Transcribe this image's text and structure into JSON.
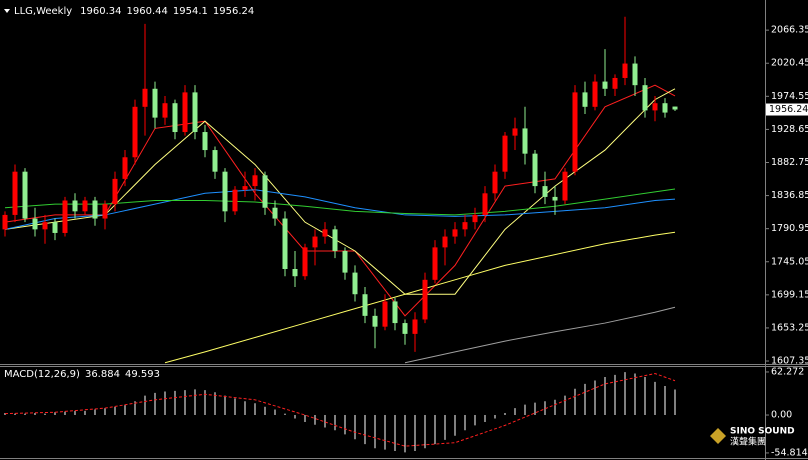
{
  "chart_data": [
    {
      "type": "candlestick",
      "title": "LLG,Weekly",
      "up_color": "#ff0000",
      "down_color": "#90ee90",
      "ylim": [
        1604.6,
        2104
      ],
      "yticks": [
        2066.35,
        2020.45,
        1974.55,
        1928.65,
        1882.75,
        1836.85,
        1790.95,
        1745.05,
        1699.15,
        1653.25,
        1607.35
      ],
      "last_price": 1956.24,
      "candles": [
        [
          1790,
          1815,
          1780,
          1810
        ],
        [
          1810,
          1880,
          1800,
          1870
        ],
        [
          1870,
          1875,
          1800,
          1805
        ],
        [
          1805,
          1820,
          1780,
          1790
        ],
        [
          1790,
          1810,
          1770,
          1800
        ],
        [
          1800,
          1805,
          1775,
          1785
        ],
        [
          1785,
          1835,
          1780,
          1830
        ],
        [
          1830,
          1840,
          1805,
          1815
        ],
        [
          1815,
          1835,
          1810,
          1830
        ],
        [
          1830,
          1835,
          1795,
          1805
        ],
        [
          1805,
          1830,
          1790,
          1825
        ],
        [
          1825,
          1870,
          1815,
          1860
        ],
        [
          1860,
          1900,
          1850,
          1890
        ],
        [
          1890,
          1970,
          1880,
          1960
        ],
        [
          1960,
          2075,
          1920,
          1985
        ],
        [
          1985,
          1995,
          1930,
          1945
        ],
        [
          1945,
          1975,
          1935,
          1965
        ],
        [
          1965,
          1970,
          1915,
          1925
        ],
        [
          1925,
          1990,
          1920,
          1980
        ],
        [
          1980,
          1990,
          1915,
          1925
        ],
        [
          1925,
          1935,
          1890,
          1900
        ],
        [
          1900,
          1905,
          1860,
          1870
        ],
        [
          1870,
          1875,
          1800,
          1815
        ],
        [
          1815,
          1850,
          1810,
          1845
        ],
        [
          1845,
          1870,
          1835,
          1850
        ],
        [
          1850,
          1875,
          1830,
          1865
        ],
        [
          1865,
          1870,
          1810,
          1820
        ],
        [
          1820,
          1830,
          1795,
          1805
        ],
        [
          1805,
          1815,
          1725,
          1735
        ],
        [
          1735,
          1760,
          1710,
          1725
        ],
        [
          1725,
          1770,
          1720,
          1765
        ],
        [
          1765,
          1790,
          1740,
          1780
        ],
        [
          1780,
          1800,
          1770,
          1790
        ],
        [
          1790,
          1795,
          1750,
          1760
        ],
        [
          1760,
          1765,
          1720,
          1730
        ],
        [
          1730,
          1740,
          1690,
          1700
        ],
        [
          1700,
          1710,
          1660,
          1670
        ],
        [
          1670,
          1680,
          1625,
          1655
        ],
        [
          1655,
          1700,
          1650,
          1690
        ],
        [
          1690,
          1695,
          1650,
          1660
        ],
        [
          1660,
          1665,
          1630,
          1645
        ],
        [
          1645,
          1675,
          1620,
          1665
        ],
        [
          1665,
          1730,
          1660,
          1720
        ],
        [
          1720,
          1775,
          1715,
          1765
        ],
        [
          1765,
          1790,
          1740,
          1780
        ],
        [
          1780,
          1800,
          1770,
          1790
        ],
        [
          1790,
          1810,
          1780,
          1800
        ],
        [
          1800,
          1820,
          1790,
          1810
        ],
        [
          1810,
          1850,
          1800,
          1840
        ],
        [
          1840,
          1880,
          1830,
          1870
        ],
        [
          1870,
          1925,
          1860,
          1920
        ],
        [
          1920,
          1945,
          1900,
          1930
        ],
        [
          1930,
          1960,
          1880,
          1895
        ],
        [
          1895,
          1900,
          1840,
          1850
        ],
        [
          1850,
          1870,
          1825,
          1835
        ],
        [
          1835,
          1850,
          1810,
          1830
        ],
        [
          1830,
          1875,
          1825,
          1870
        ],
        [
          1870,
          1990,
          1865,
          1980
        ],
        [
          1980,
          1995,
          1950,
          1960
        ],
        [
          1960,
          2005,
          1955,
          1995
        ],
        [
          1995,
          2040,
          1975,
          1985
        ],
        [
          1985,
          2005,
          1975,
          2000
        ],
        [
          2000,
          2085,
          1990,
          2020
        ],
        [
          2020,
          2030,
          1975,
          1990
        ],
        [
          1990,
          2000,
          1945,
          1955
        ],
        [
          1955,
          1975,
          1940,
          1965
        ],
        [
          1965,
          1972,
          1945,
          1952
        ],
        [
          1960.34,
          1960.44,
          1954.1,
          1956.24
        ]
      ],
      "lines": [
        {
          "color": "#ff2020",
          "x": [
            0,
            5,
            10,
            15,
            20,
            25,
            30,
            35,
            40,
            45,
            50,
            55,
            60,
            65,
            67
          ],
          "values": [
            1800,
            1810,
            1810,
            1930,
            1940,
            1840,
            1760,
            1760,
            1670,
            1740,
            1850,
            1860,
            1960,
            1990,
            1975
          ]
        },
        {
          "color": "#ffff80",
          "x": [
            0,
            5,
            10,
            15,
            20,
            25,
            30,
            35,
            40,
            45,
            50,
            55,
            60,
            65,
            67
          ],
          "values": [
            1790,
            1800,
            1810,
            1880,
            1940,
            1880,
            1800,
            1760,
            1700,
            1700,
            1790,
            1850,
            1900,
            1970,
            1985
          ]
        },
        {
          "color": "#1e90ff",
          "x": [
            0,
            5,
            10,
            15,
            20,
            25,
            30,
            35,
            40,
            45,
            50,
            55,
            60,
            65,
            67
          ],
          "values": [
            1790,
            1805,
            1810,
            1825,
            1840,
            1845,
            1835,
            1820,
            1810,
            1808,
            1810,
            1815,
            1820,
            1830,
            1832
          ]
        },
        {
          "color": "#32cd32",
          "x": [
            0,
            5,
            10,
            15,
            20,
            25,
            30,
            35,
            40,
            45,
            50,
            55,
            60,
            65,
            67
          ],
          "values": [
            1820,
            1825,
            1825,
            1830,
            1830,
            1828,
            1822,
            1815,
            1812,
            1810,
            1815,
            1822,
            1832,
            1842,
            1846
          ]
        },
        {
          "color": "#ffff66",
          "x": [
            16,
            20,
            25,
            30,
            35,
            40,
            45,
            50,
            55,
            60,
            65,
            67
          ],
          "values": [
            1605,
            1620,
            1640,
            1660,
            1680,
            1700,
            1720,
            1740,
            1755,
            1770,
            1782,
            1786
          ]
        },
        {
          "color": "#a0a0a0",
          "x": [
            40,
            45,
            50,
            55,
            60,
            65,
            67
          ],
          "values": [
            1605,
            1620,
            1635,
            1648,
            1660,
            1675,
            1682
          ]
        }
      ]
    },
    {
      "type": "macd",
      "title": "MACD(12,26,9)",
      "ylim": [
        -60.7,
        68
      ],
      "yticks": [
        62.272,
        {
          "value": 0,
          "label": "0.00"
        },
        -54.814
      ],
      "color": "#ffffff",
      "values": [
        3,
        2,
        2,
        3,
        2,
        4,
        5,
        6,
        6,
        8,
        10,
        12,
        15,
        20,
        28,
        32,
        34,
        35,
        36,
        37,
        36,
        33,
        28,
        24,
        20,
        17,
        12,
        8,
        2,
        -5,
        -10,
        -14,
        -18,
        -22,
        -28,
        -35,
        -42,
        -48,
        -50,
        -52,
        -54,
        -52,
        -48,
        -42,
        -36,
        -30,
        -22,
        -15,
        -10,
        -5,
        3,
        10,
        15,
        18,
        20,
        22,
        28,
        38,
        45,
        50,
        55,
        58,
        62,
        60,
        55,
        48,
        42,
        36.884
      ],
      "signal": {
        "color": "#ff2020",
        "x": [
          0,
          5,
          10,
          15,
          20,
          25,
          30,
          35,
          40,
          45,
          50,
          55,
          60,
          65,
          67
        ],
        "values": [
          2,
          4,
          10,
          22,
          30,
          22,
          0,
          -25,
          -45,
          -40,
          -15,
          15,
          45,
          60,
          49.593
        ]
      }
    }
  ],
  "logo": {
    "name": "SINO SOUND",
    "chinese": "漢聲集團"
  }
}
